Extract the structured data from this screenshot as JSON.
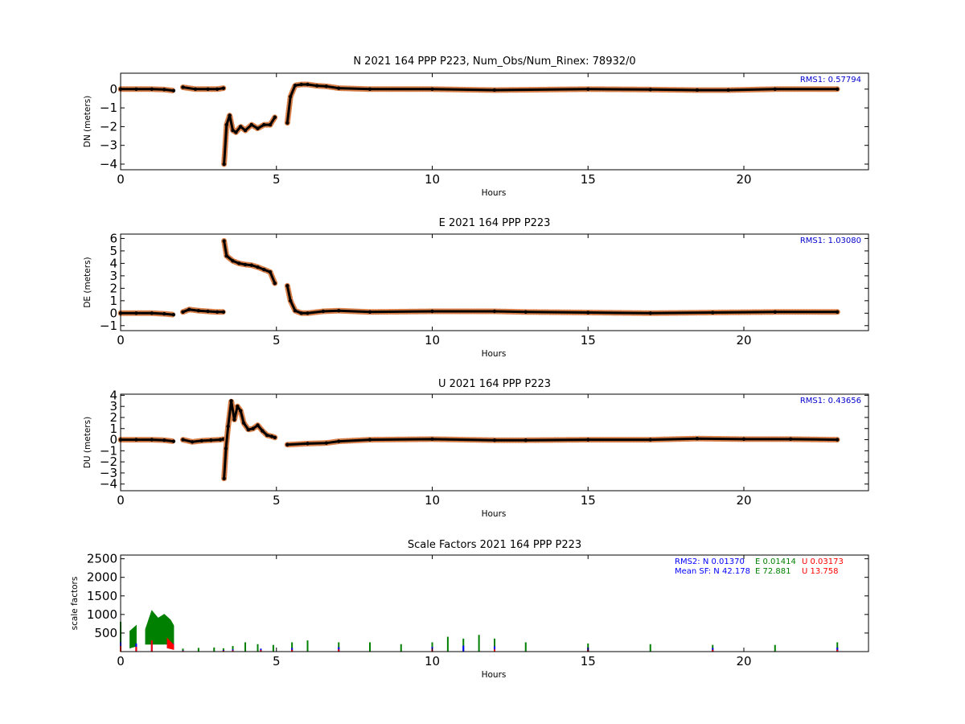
{
  "colors": {
    "obs_dots": "#d9804a",
    "fit_line": "#000000",
    "rms_text": "#0000cc",
    "sf_north": "#0000ff",
    "sf_east": "#008000",
    "sf_up": "#ff0000"
  },
  "chart_data": [
    {
      "type": "scatter",
      "title": "N 2021 164 PPP  P223, Num_Obs/Num_Rinex: 78932/0",
      "xlabel": "Hours",
      "ylabel": "DN (meters)",
      "xlim": [
        0,
        24
      ],
      "ylim": [
        -4.3,
        0.85
      ],
      "xticks": [
        "0",
        "5",
        "10",
        "15",
        "20"
      ],
      "yticks": [
        "0",
        "−1",
        "−2",
        "−3",
        "−4"
      ],
      "ytick_values": [
        0,
        -1,
        -2,
        -3,
        -4
      ],
      "annotation": "RMS1:  0.57794",
      "segments": [
        {
          "x": [
            0,
            0.5,
            1.0,
            1.4,
            1.7
          ],
          "y": [
            0.0,
            0.0,
            0.0,
            -0.02,
            -0.08
          ]
        },
        {
          "x": [
            2.0,
            2.4,
            2.8,
            3.1,
            3.3
          ],
          "y": [
            0.1,
            0.0,
            0.0,
            0.0,
            0.05
          ]
        },
        {
          "x": [
            3.32,
            3.4,
            3.5,
            3.6,
            3.7,
            3.85,
            4.0,
            4.2,
            4.4,
            4.6,
            4.8,
            4.95
          ],
          "y": [
            -4.0,
            -1.9,
            -1.4,
            -2.2,
            -2.3,
            -2.0,
            -2.2,
            -1.9,
            -2.1,
            -1.9,
            -1.9,
            -1.5
          ]
        },
        {
          "x": [
            5.35,
            5.45,
            5.6,
            5.8,
            6.0,
            6.3,
            6.6,
            7.0,
            8.0,
            10.0,
            12.0,
            15.0,
            17.0,
            18.5,
            19.5,
            21.0,
            23.0
          ],
          "y": [
            -1.8,
            -0.4,
            0.2,
            0.25,
            0.25,
            0.18,
            0.15,
            0.05,
            0.0,
            0.0,
            -0.05,
            0.0,
            -0.02,
            -0.05,
            -0.05,
            0.0,
            0.0
          ]
        }
      ]
    },
    {
      "type": "scatter",
      "title": "E 2021 164 PPP  P223",
      "xlabel": "Hours",
      "ylabel": "DE (meters)",
      "xlim": [
        0,
        24
      ],
      "ylim": [
        -1.4,
        6.35
      ],
      "xticks": [
        "0",
        "5",
        "10",
        "15",
        "20"
      ],
      "yticks": [
        "6",
        "5",
        "4",
        "3",
        "2",
        "1",
        "0",
        "−1"
      ],
      "ytick_values": [
        6,
        5,
        4,
        3,
        2,
        1,
        0,
        -1
      ],
      "annotation": "RMS1:  1.03080",
      "segments": [
        {
          "x": [
            0,
            0.5,
            1.0,
            1.4,
            1.7
          ],
          "y": [
            0.0,
            0.0,
            0.0,
            -0.05,
            -0.12
          ]
        },
        {
          "x": [
            2.0,
            2.2,
            2.5,
            2.8,
            3.1,
            3.3
          ],
          "y": [
            0.1,
            0.3,
            0.2,
            0.15,
            0.1,
            0.1
          ]
        },
        {
          "x": [
            3.32,
            3.4,
            3.6,
            3.8,
            4.0,
            4.2,
            4.4,
            4.6,
            4.8,
            4.95
          ],
          "y": [
            5.8,
            4.6,
            4.2,
            4.0,
            3.9,
            3.85,
            3.7,
            3.5,
            3.3,
            2.4
          ]
        },
        {
          "x": [
            5.35,
            5.45,
            5.6,
            5.8,
            6.0,
            6.5,
            7.0,
            8.0,
            10.0,
            12.0,
            13.0,
            15.0,
            17.0,
            19.0,
            21.0,
            23.0
          ],
          "y": [
            2.2,
            1.0,
            0.2,
            0.0,
            0.0,
            0.15,
            0.2,
            0.1,
            0.15,
            0.15,
            0.1,
            0.05,
            0.0,
            0.05,
            0.1,
            0.1
          ]
        }
      ]
    },
    {
      "type": "scatter",
      "title": "U 2021 164 PPP  P223",
      "xlabel": "Hours",
      "ylabel": "DU (meters)",
      "xlim": [
        0,
        24
      ],
      "ylim": [
        -4.6,
        4.1
      ],
      "xticks": [
        "0",
        "5",
        "10",
        "15",
        "20"
      ],
      "yticks": [
        "4",
        "3",
        "2",
        "1",
        "0",
        "−1",
        "−2",
        "−3",
        "−4"
      ],
      "ytick_values": [
        4,
        3,
        2,
        1,
        0,
        -1,
        -2,
        -3,
        -4
      ],
      "annotation": "RMS1:  0.43656",
      "segments": [
        {
          "x": [
            0,
            0.5,
            1.0,
            1.4,
            1.7
          ],
          "y": [
            0.0,
            0.0,
            0.0,
            -0.05,
            -0.15
          ]
        },
        {
          "x": [
            2.0,
            2.3,
            2.6,
            2.9,
            3.2,
            3.3
          ],
          "y": [
            0.0,
            -0.2,
            -0.1,
            -0.05,
            0.0,
            0.05
          ]
        },
        {
          "x": [
            3.32,
            3.38,
            3.45,
            3.55,
            3.65,
            3.75,
            3.85,
            3.95,
            4.1,
            4.25,
            4.4,
            4.55,
            4.7,
            4.85,
            4.95
          ],
          "y": [
            -3.5,
            -0.8,
            1.2,
            3.5,
            1.8,
            3.0,
            2.6,
            1.5,
            0.9,
            1.0,
            1.3,
            0.8,
            0.4,
            0.3,
            0.2
          ]
        },
        {
          "x": [
            5.35,
            6.0,
            6.6,
            7.0,
            8.0,
            10.0,
            12.0,
            13.0,
            15.0,
            17.0,
            18.5,
            20.0,
            21.5,
            23.0
          ],
          "y": [
            -0.45,
            -0.35,
            -0.3,
            -0.15,
            0.0,
            0.05,
            -0.05,
            -0.05,
            0.0,
            0.0,
            0.1,
            0.05,
            0.05,
            0.0
          ]
        }
      ]
    },
    {
      "type": "scatter",
      "title": "Scale Factors 2021 164 PPP  P223",
      "xlabel": "Hours",
      "ylabel": "scale factors",
      "xlim": [
        0,
        24
      ],
      "ylim": [
        0,
        2600
      ],
      "xticks": [
        "0",
        "5",
        "10",
        "15",
        "20"
      ],
      "yticks": [
        "2500",
        "2000",
        "1500",
        "1000",
        "500"
      ],
      "ytick_values": [
        2500,
        2000,
        1500,
        1000,
        500
      ],
      "notes": {
        "rms2_label": "RMS2: N  0.01370",
        "rms2_e": "E  0.01414",
        "rms2_u": "U  0.03173",
        "sf_label": "Mean SF: N  42.178",
        "sf_e": "E  72.881",
        "sf_u": "U  13.758"
      },
      "series": [
        {
          "key": "east",
          "x": [
            0.0,
            0.3,
            0.5,
            0.8,
            1.0,
            1.2,
            1.4,
            1.6,
            1.7,
            2.0,
            2.5,
            3.0,
            3.3,
            3.6,
            4.0,
            4.4,
            4.9,
            5.5,
            6.0,
            7.0,
            8.0,
            9.0,
            10.0,
            10.5,
            11.0,
            11.5,
            12.0,
            13.0,
            15.0,
            17.0,
            19.0,
            21.0,
            23.0
          ],
          "y": [
            800,
            550,
            700,
            600,
            1100,
            900,
            1000,
            850,
            700,
            80,
            100,
            110,
            90,
            150,
            250,
            200,
            180,
            250,
            300,
            250,
            250,
            200,
            250,
            400,
            350,
            450,
            350,
            250,
            220,
            200,
            180,
            180,
            250
          ],
          "band": [
            600,
            450,
            550,
            400,
            900,
            700,
            800,
            650,
            500,
            60,
            80,
            90,
            70,
            100,
            200,
            170,
            150,
            180,
            220,
            170,
            180,
            150,
            170,
            280,
            250,
            300,
            250,
            170,
            160,
            150,
            140,
            140,
            180
          ]
        },
        {
          "key": "north",
          "x": [
            0.0,
            0.5,
            1.0,
            1.5,
            1.7,
            2.0,
            3.3,
            3.6,
            4.5,
            5.5,
            7.0,
            10.0,
            11.0,
            12.0,
            15.0,
            19.0,
            23.0
          ],
          "y": [
            250,
            220,
            280,
            250,
            200,
            30,
            40,
            60,
            80,
            100,
            120,
            130,
            160,
            140,
            110,
            100,
            110
          ],
          "band": [
            150,
            130,
            170,
            150,
            120,
            20,
            30,
            40,
            50,
            60,
            70,
            80,
            100,
            90,
            70,
            60,
            70
          ]
        },
        {
          "key": "up",
          "x": [
            0.0,
            0.5,
            1.0,
            1.5,
            1.7,
            2.0,
            3.3,
            3.6,
            4.5,
            5.5,
            7.0,
            10.0,
            12.0,
            15.0,
            19.0,
            23.0
          ],
          "y": [
            150,
            130,
            300,
            350,
            180,
            20,
            25,
            30,
            40,
            50,
            60,
            60,
            60,
            50,
            50,
            50
          ],
          "band": [
            100,
            90,
            200,
            250,
            120,
            15,
            20,
            20,
            30,
            35,
            40,
            40,
            40,
            35,
            35,
            35
          ]
        }
      ]
    }
  ]
}
